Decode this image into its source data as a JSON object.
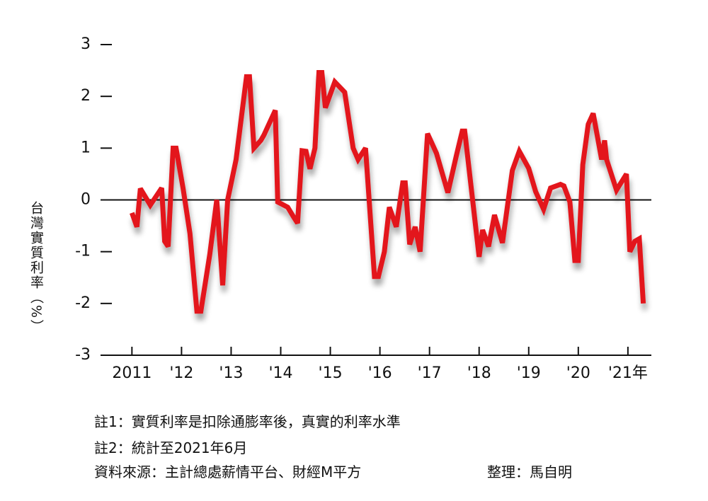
{
  "chart_data": {
    "type": "line",
    "y_label": "台灣實質利率（%）",
    "x": [
      2011.0,
      2011.1,
      2011.17,
      2011.37,
      2011.6,
      2011.66,
      2011.73,
      2011.83,
      2011.89,
      2012.03,
      2012.17,
      2012.31,
      2012.39,
      2012.57,
      2012.71,
      2012.83,
      2012.93,
      2013.1,
      2013.31,
      2013.37,
      2013.46,
      2013.6,
      2013.66,
      2013.89,
      2013.94,
      2014.14,
      2014.26,
      2014.34,
      2014.43,
      2014.51,
      2014.59,
      2014.69,
      2014.77,
      2014.83,
      2014.9,
      2015.09,
      2015.29,
      2015.46,
      2015.56,
      2015.71,
      2015.89,
      2015.97,
      2016.09,
      2016.19,
      2016.33,
      2016.46,
      2016.51,
      2016.6,
      2016.71,
      2016.81,
      2016.96,
      2017.14,
      2017.37,
      2017.54,
      2017.66,
      2017.71,
      2018.0,
      2018.07,
      2018.19,
      2018.31,
      2018.47,
      2018.67,
      2018.81,
      2019.0,
      2019.14,
      2019.3,
      2019.44,
      2019.64,
      2019.71,
      2019.83,
      2019.93,
      2020.0,
      2020.09,
      2020.2,
      2020.3,
      2020.47,
      2020.53,
      2020.57,
      2020.77,
      2020.97,
      2021.04,
      2021.14,
      2021.23,
      2021.31
    ],
    "series": [
      {
        "name": "實質利率",
        "color": "#e3141d",
        "values": [
          -0.25,
          -0.52,
          0.22,
          -0.1,
          0.23,
          -0.8,
          -0.9,
          1.0,
          1.0,
          0.23,
          -0.65,
          -2.15,
          -2.15,
          -1.05,
          0,
          -1.65,
          0,
          0.78,
          2.38,
          2.38,
          1.0,
          1.15,
          1.25,
          1.73,
          -0.04,
          -0.14,
          -0.33,
          -0.45,
          0.95,
          0.94,
          0.6,
          1.0,
          2.46,
          2.46,
          1.78,
          2.28,
          2.08,
          1.0,
          0.78,
          1.0,
          -1.48,
          -1.48,
          -1.0,
          -0.14,
          -0.52,
          0.33,
          0.33,
          -0.86,
          -0.52,
          -1.0,
          1.28,
          0.9,
          0.14,
          0.85,
          1.33,
          1.33,
          -1.1,
          -0.58,
          -0.9,
          -0.29,
          -0.83,
          0.57,
          0.94,
          0.61,
          0.16,
          -0.18,
          0.23,
          0.3,
          0.27,
          -0.04,
          -1.17,
          -1.17,
          0.68,
          1.46,
          1.67,
          0.78,
          1.15,
          0.78,
          0.19,
          0.5,
          -1.0,
          -0.8,
          -0.75,
          -2.0
        ]
      }
    ],
    "xlim": [
      2010.21,
      2021.43
    ],
    "ylim": [
      -3,
      3
    ],
    "yticks": [
      3,
      2,
      1,
      0,
      -1,
      -2,
      -3
    ],
    "xticks": [
      {
        "value": 2011,
        "label": "2011"
      },
      {
        "value": 2012,
        "label": "'12"
      },
      {
        "value": 2013,
        "label": "'13"
      },
      {
        "value": 2014,
        "label": "'14"
      },
      {
        "value": 2015,
        "label": "'15"
      },
      {
        "value": 2016,
        "label": "'16"
      },
      {
        "value": 2017,
        "label": "'17"
      },
      {
        "value": 2018,
        "label": "'18"
      },
      {
        "value": 2019,
        "label": "'19"
      },
      {
        "value": 2020,
        "label": "'20"
      },
      {
        "value": 2021,
        "label": "'21年"
      }
    ],
    "notes": [
      "註1：實質利率是扣除通膨率後，真實的利率水準",
      "註2：統計至2021年6月",
      "資料來源：主計總處薪情平台、財經M平方"
    ],
    "credit": "整理：馬自明"
  }
}
